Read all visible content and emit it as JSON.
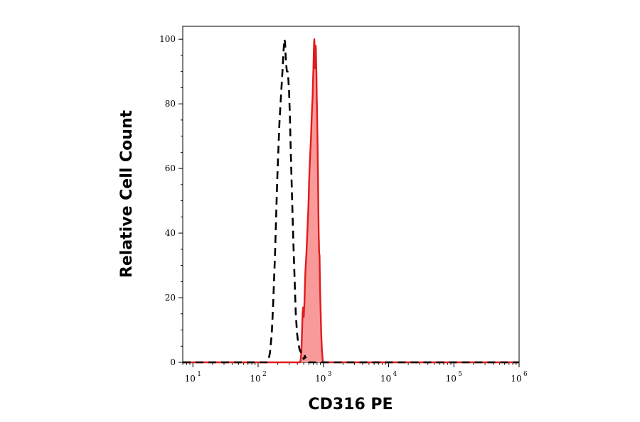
{
  "chart_data": {
    "type": "area",
    "title": "",
    "xlabel": "CD316 PE",
    "ylabel": "Relative Cell Count",
    "x_scale": "log",
    "xlim": [
      7,
      1000000
    ],
    "ylim": [
      0,
      104
    ],
    "x_ticks": [
      {
        "value": 10,
        "base": "10",
        "exp": "1"
      },
      {
        "value": 100,
        "base": "10",
        "exp": "2"
      },
      {
        "value": 1000,
        "base": "10",
        "exp": "3"
      },
      {
        "value": 10000,
        "base": "10",
        "exp": "4"
      },
      {
        "value": 100000,
        "base": "10",
        "exp": "5"
      },
      {
        "value": 1000000,
        "base": "10",
        "exp": "6"
      }
    ],
    "y_ticks": [
      {
        "value": 0,
        "label": "0"
      },
      {
        "value": 20,
        "label": "20"
      },
      {
        "value": 40,
        "label": "40"
      },
      {
        "value": 60,
        "label": "60"
      },
      {
        "value": 80,
        "label": "80"
      },
      {
        "value": 100,
        "label": "100"
      }
    ],
    "grid": false,
    "legend": "none",
    "series": [
      {
        "style": "dashed",
        "color": "#000000",
        "fill": "none",
        "points": [
          [
            7,
            0
          ],
          [
            140,
            0
          ],
          [
            145,
            1
          ],
          [
            152,
            3
          ],
          [
            162,
            9
          ],
          [
            170,
            18
          ],
          [
            182,
            34
          ],
          [
            196,
            56
          ],
          [
            212,
            74
          ],
          [
            225,
            83
          ],
          [
            236,
            90
          ],
          [
            245,
            96
          ],
          [
            252,
            100
          ],
          [
            259,
            99
          ],
          [
            264,
            95
          ],
          [
            270,
            92
          ],
          [
            276,
            90
          ],
          [
            283,
            90
          ],
          [
            290,
            88
          ],
          [
            298,
            84
          ],
          [
            306,
            77
          ],
          [
            316,
            66
          ],
          [
            330,
            52
          ],
          [
            346,
            38
          ],
          [
            362,
            26
          ],
          [
            378,
            15
          ],
          [
            395,
            9
          ],
          [
            412,
            6
          ],
          [
            432,
            4
          ],
          [
            455,
            3
          ],
          [
            478,
            2
          ],
          [
            500,
            1
          ],
          [
            520,
            2
          ],
          [
            545,
            1
          ],
          [
            570,
            1
          ],
          [
            600,
            0
          ],
          [
            1000000,
            0
          ]
        ]
      },
      {
        "style": "solid",
        "color": "#e11b1b",
        "fill": "#f99a9a",
        "points": [
          [
            7,
            0
          ],
          [
            440,
            0
          ],
          [
            450,
            1
          ],
          [
            460,
            3
          ],
          [
            470,
            9
          ],
          [
            480,
            15
          ],
          [
            490,
            17
          ],
          [
            500,
            14
          ],
          [
            512,
            18
          ],
          [
            530,
            28
          ],
          [
            548,
            33
          ],
          [
            562,
            38
          ],
          [
            578,
            44
          ],
          [
            590,
            48
          ],
          [
            605,
            56
          ],
          [
            620,
            62
          ],
          [
            634,
            66
          ],
          [
            648,
            70
          ],
          [
            660,
            75
          ],
          [
            672,
            79
          ],
          [
            684,
            82
          ],
          [
            694,
            87
          ],
          [
            704,
            91
          ],
          [
            713,
            96
          ],
          [
            720,
            99
          ],
          [
            727,
            100
          ],
          [
            733,
            98
          ],
          [
            740,
            94
          ],
          [
            748,
            91
          ],
          [
            756,
            94
          ],
          [
            763,
            98
          ],
          [
            769,
            97
          ],
          [
            776,
            93
          ],
          [
            784,
            89
          ],
          [
            792,
            82
          ],
          [
            802,
            77
          ],
          [
            812,
            70
          ],
          [
            822,
            62
          ],
          [
            834,
            52
          ],
          [
            848,
            40
          ],
          [
            862,
            34
          ],
          [
            874,
            33
          ],
          [
            888,
            24
          ],
          [
            902,
            18
          ],
          [
            918,
            12
          ],
          [
            935,
            7
          ],
          [
            950,
            4
          ],
          [
            965,
            2
          ],
          [
            985,
            0
          ],
          [
            1000000,
            0
          ]
        ]
      }
    ]
  }
}
